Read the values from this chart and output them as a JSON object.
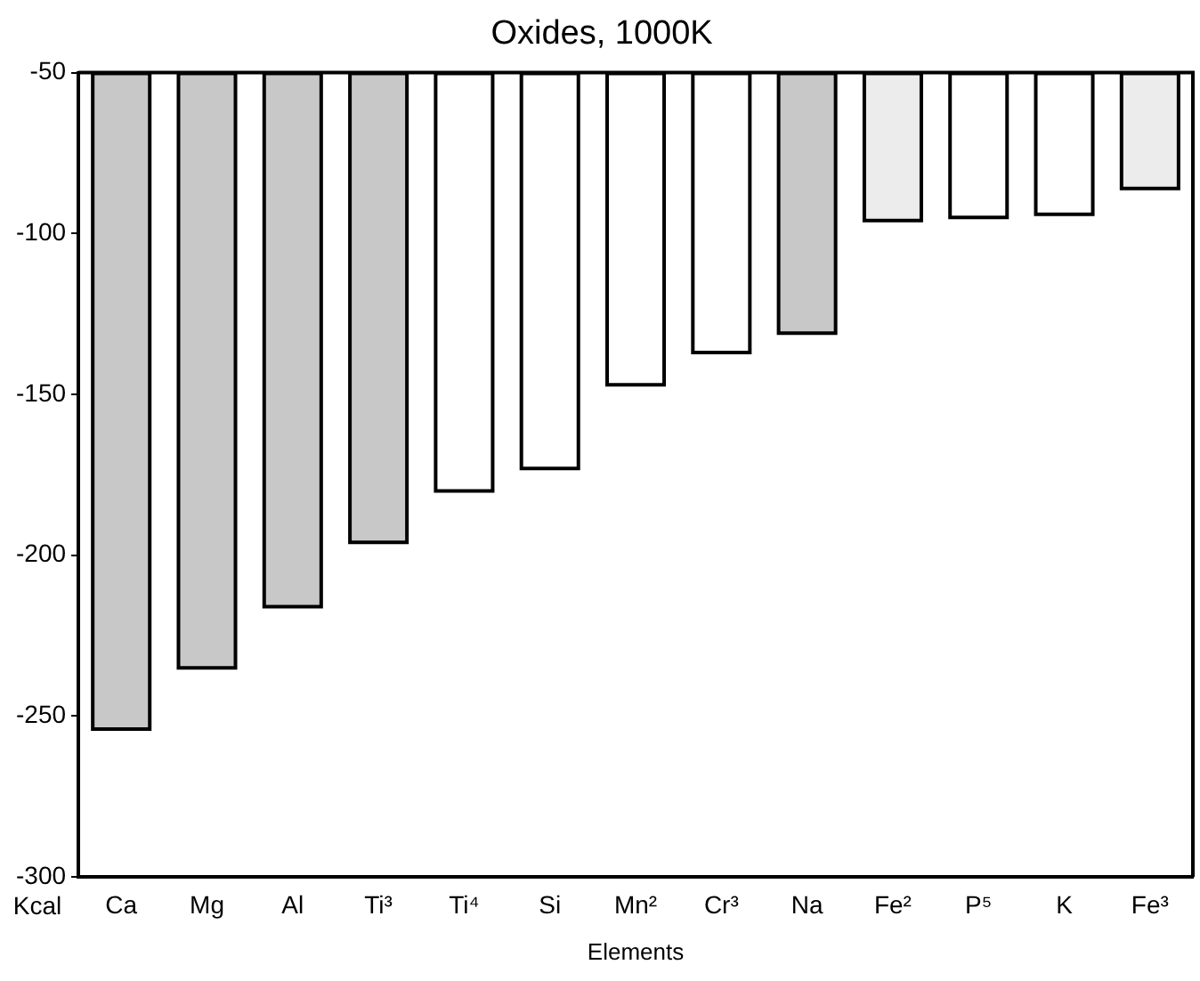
{
  "chart_data": {
    "type": "bar",
    "title": "Oxides, 1000K",
    "xlabel": "Elements",
    "ylabel": "Kcal",
    "categories": [
      "Ca",
      "Mg",
      "Al",
      "Ti³",
      "Ti⁴",
      "Si",
      "Mn²",
      "Cr³",
      "Na",
      "Fe²",
      "P⁵",
      "K",
      "Fe³"
    ],
    "values": [
      -254,
      -235,
      -216,
      -196,
      -180,
      -173,
      -147,
      -137,
      -131,
      -96,
      -95,
      -94,
      -86
    ],
    "colors": [
      "#c8c8c8",
      "#c8c8c8",
      "#c8c8c8",
      "#c8c8c8",
      "#ffffff",
      "#ffffff",
      "#ffffff",
      "#ffffff",
      "#c8c8c8",
      "#ececec",
      "#ffffff",
      "#ffffff",
      "#ececec"
    ],
    "ylim": [
      -300,
      -50
    ],
    "yticks": [
      -300,
      -250,
      -200,
      -150,
      -100,
      -50
    ],
    "grid": false,
    "legend": false
  }
}
